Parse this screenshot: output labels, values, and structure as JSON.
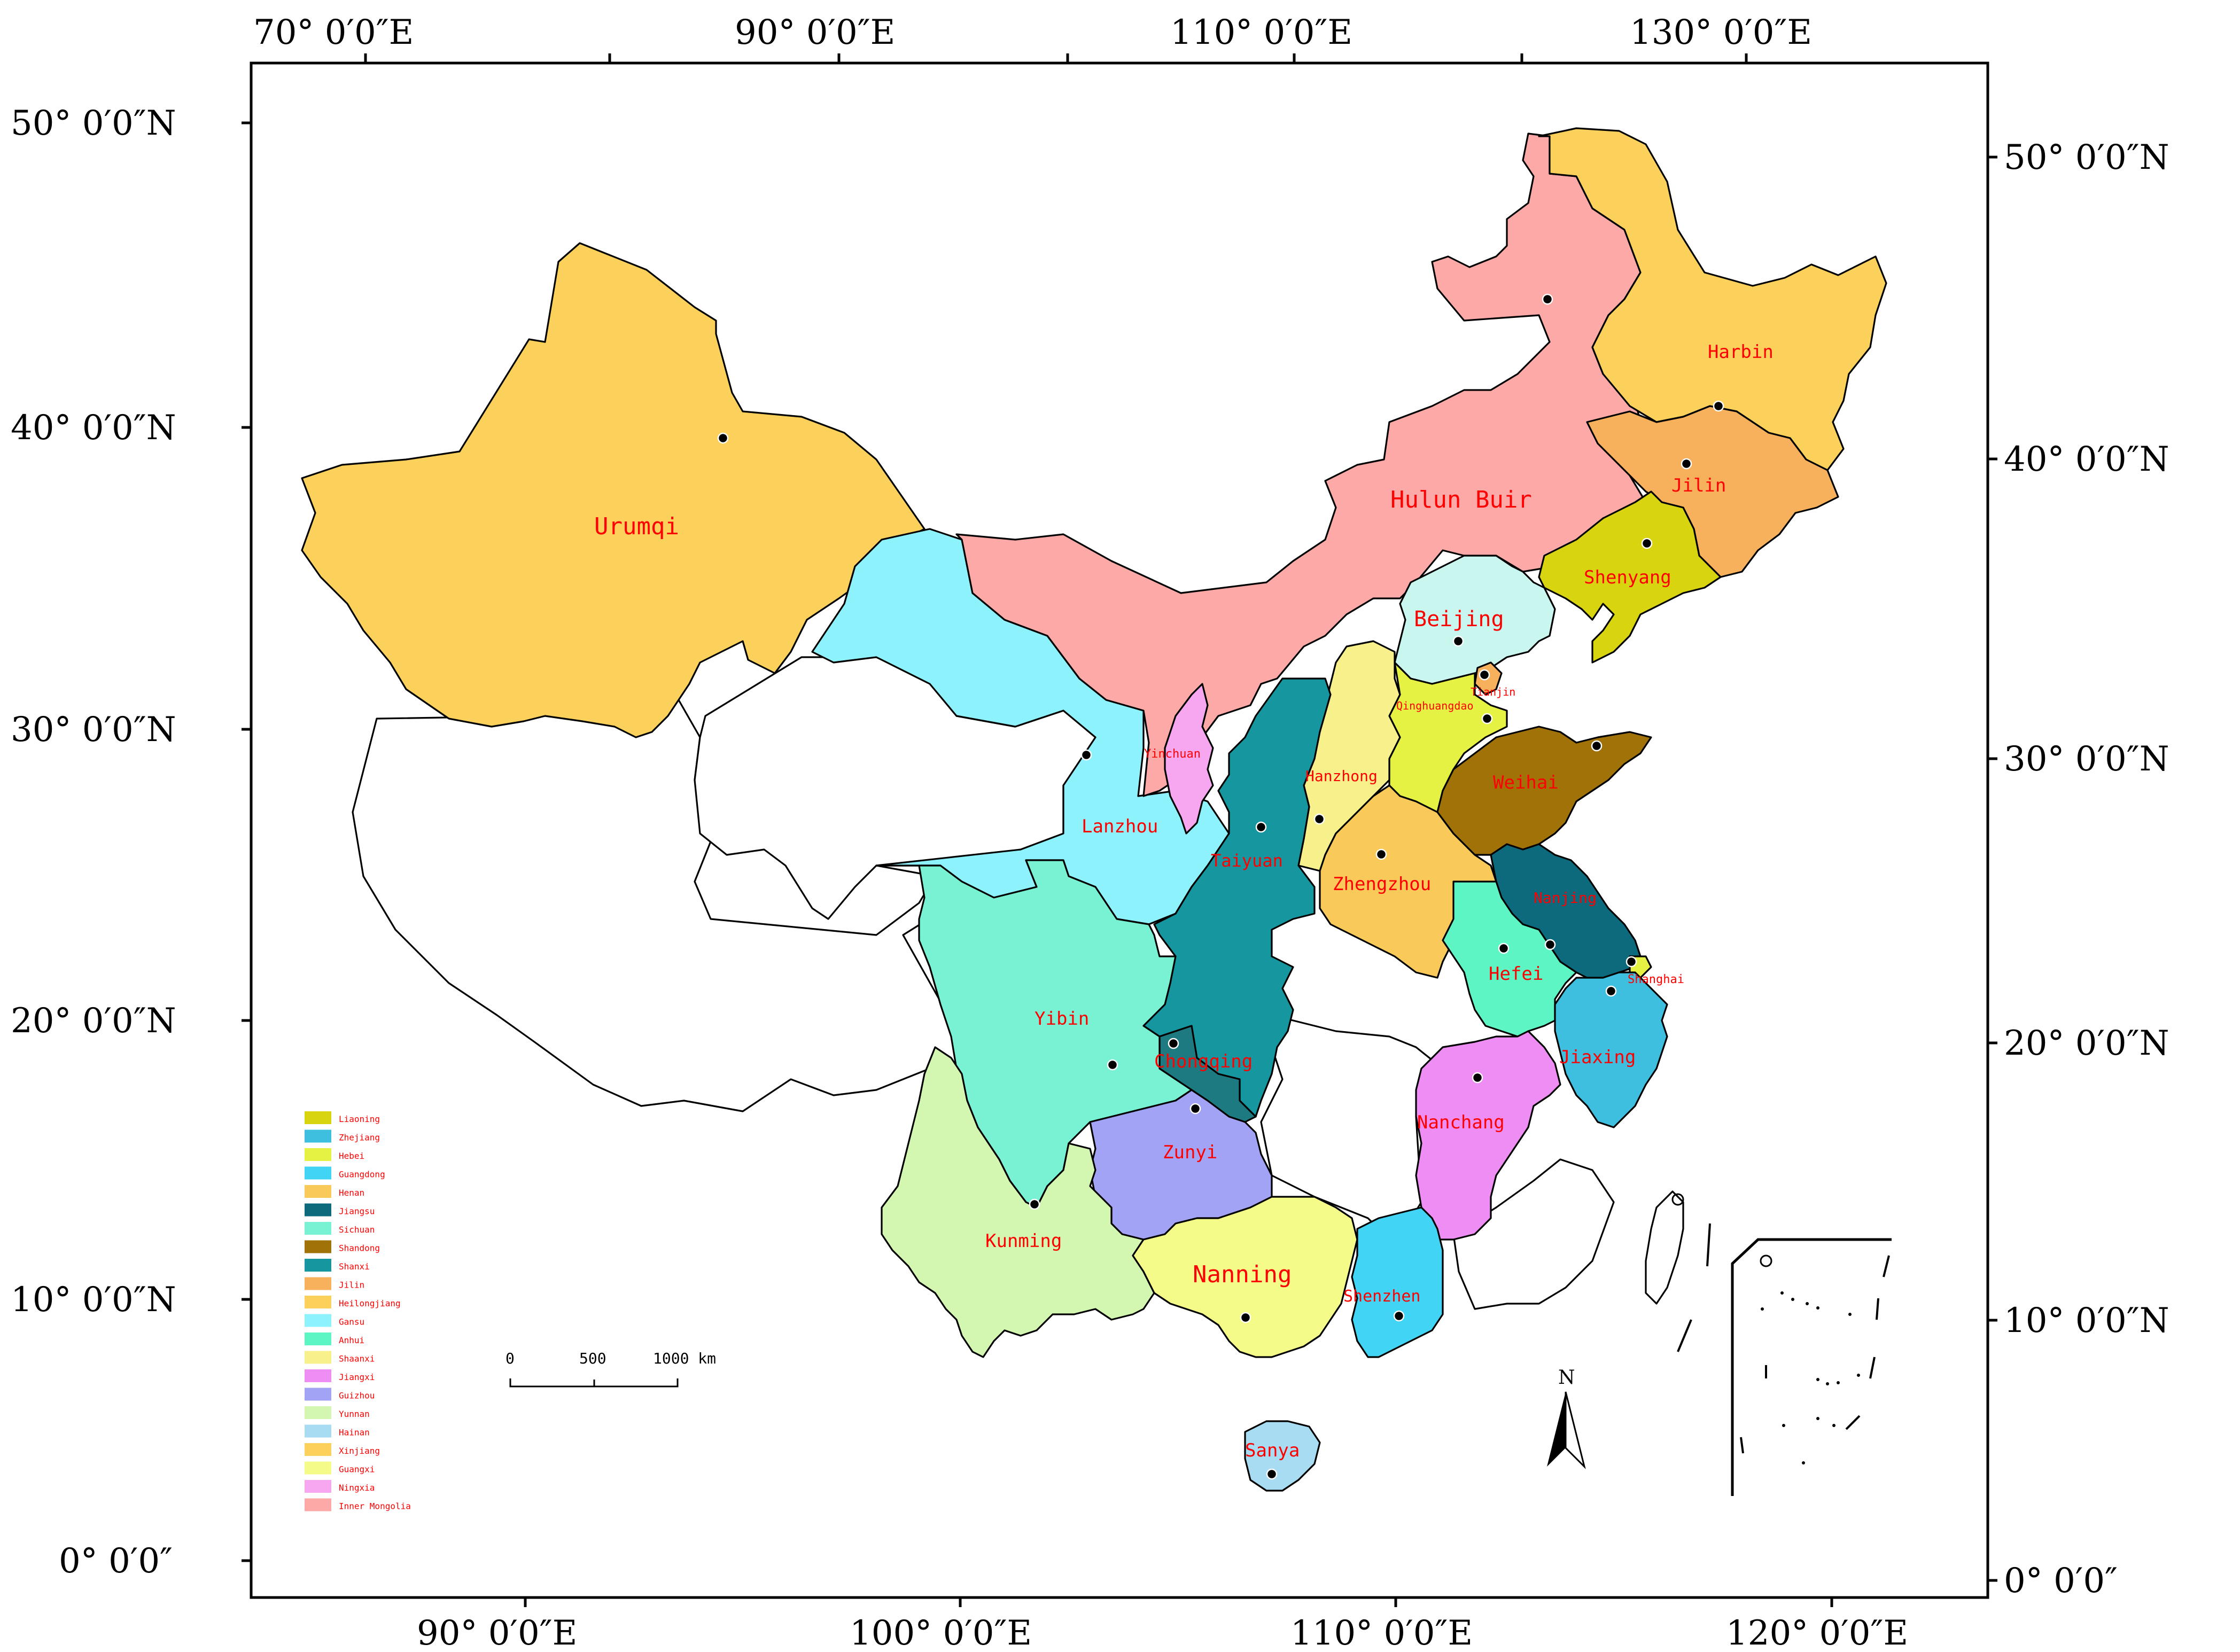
{
  "map": {
    "top_axis_labels": [
      "70° 0′0″E",
      "90° 0′0″E",
      "110° 0′0″E",
      "130° 0′0″E"
    ],
    "bottom_axis_labels": [
      "90° 0′0″E",
      "100° 0′0″E",
      "110° 0′0″E",
      "120° 0′0″E"
    ],
    "left_axis_labels": [
      "50° 0′0″N",
      "40° 0′0″N",
      "30° 0′0″N",
      "20° 0′0″N",
      "10° 0′0″N",
      "0° 0′0″"
    ],
    "right_axis_labels": [
      "50° 0′0″N",
      "40° 0′0″N",
      "30° 0′0″N",
      "20° 0′0″N",
      "10° 0′0″N",
      "0° 0′0″"
    ],
    "cities": [
      "Urumqi",
      "Hulun Buir",
      "Harbin",
      "Jilin",
      "Shenyang",
      "Beijing",
      "Tianjin",
      "Qinghuangdao",
      "Hanzhong",
      "Yinchuan",
      "Lanzhou",
      "Taiyuan",
      "Zhengzhou",
      "Weihai",
      "Nanjing",
      "Shanghai",
      "Hefei",
      "Jiaxing",
      "Yibin",
      "Chongqing",
      "Zunyi",
      "Nanchang",
      "Kunming",
      "Nanning",
      "Shenzhen",
      "Sanya"
    ],
    "legend": [
      {
        "label": "Liaoning",
        "color": "#d9d410"
      },
      {
        "label": "Zhejiang",
        "color": "#3ebfe0"
      },
      {
        "label": "Hebei",
        "color": "#e6f243"
      },
      {
        "label": "Guangdong",
        "color": "#41d4f5"
      },
      {
        "label": "Henan",
        "color": "#f9c95a"
      },
      {
        "label": "Jiangsu",
        "color": "#0d6a7d"
      },
      {
        "label": "Sichuan",
        "color": "#79f2d3"
      },
      {
        "label": "Shandong",
        "color": "#a07208"
      },
      {
        "label": "Shanxi",
        "color": "#16969e"
      },
      {
        "label": "Jilin",
        "color": "#f7b15c"
      },
      {
        "label": "Heilongjiang",
        "color": "#fcd15b"
      },
      {
        "label": "Gansu",
        "color": "#8ef2fc"
      },
      {
        "label": "Anhui",
        "color": "#5ef5c5"
      },
      {
        "label": "Shaanxi",
        "color": "#f7f08b"
      },
      {
        "label": "Jiangxi",
        "color": "#ee8ef5"
      },
      {
        "label": "Guizhou",
        "color": "#a3a3f5"
      },
      {
        "label": "Yunnan",
        "color": "#d3f7b0"
      },
      {
        "label": "Hainan",
        "color": "#a7dcf2"
      },
      {
        "label": "Xinjiang",
        "color": "#fcd15b"
      },
      {
        "label": "Guangxi",
        "color": "#f5fb88"
      },
      {
        "label": "Ningxia",
        "color": "#f7a6f0"
      },
      {
        "label": "Inner Mongolia",
        "color": "#fda9a8"
      }
    ],
    "scale_bar": {
      "labels": [
        "0",
        "500",
        "1000 km"
      ]
    },
    "north_arrow": {
      "label": "N"
    }
  }
}
